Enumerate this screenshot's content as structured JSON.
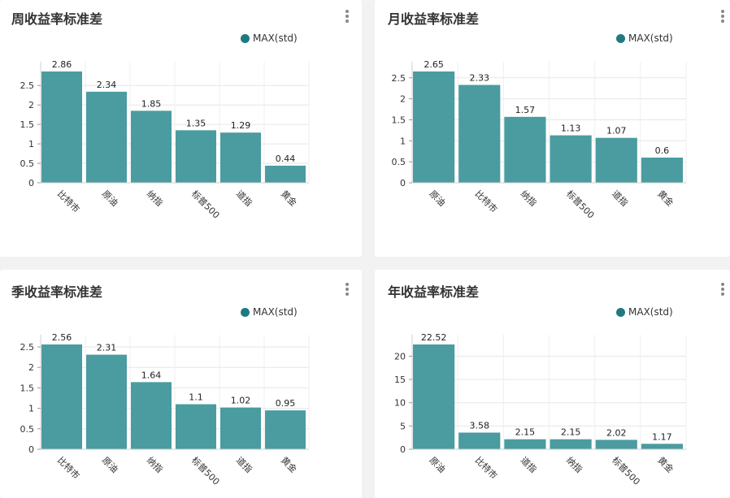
{
  "colors": {
    "bar": "#4a9ca0",
    "legend": "#1f7a80"
  },
  "chart_data": [
    {
      "type": "bar",
      "title": "周收益率标准差",
      "legend": "MAX(std)",
      "categories": [
        "比特市",
        "原油",
        "纳指",
        "标普500",
        "道指",
        "黄金"
      ],
      "values": [
        2.86,
        2.34,
        1.85,
        1.35,
        1.29,
        0.44
      ],
      "value_labels": [
        "2.86",
        "2.34",
        "1.85",
        "1.35",
        "1.29",
        "0.44"
      ],
      "yticks": [
        "0",
        "0.5",
        "1",
        "1.5",
        "2",
        "2.5"
      ],
      "ytick_values": [
        0,
        0.5,
        1,
        1.5,
        2,
        2.5
      ],
      "ylim": [
        0,
        2.86
      ]
    },
    {
      "type": "bar",
      "title": "月收益率标准差",
      "legend": "MAX(std)",
      "categories": [
        "原油",
        "比特市",
        "纳指",
        "标普500",
        "道指",
        "黄金"
      ],
      "values": [
        2.65,
        2.33,
        1.57,
        1.13,
        1.07,
        0.6
      ],
      "value_labels": [
        "2.65",
        "2.33",
        "1.57",
        "1.13",
        "1.07",
        "0.6"
      ],
      "yticks": [
        "0",
        "0.5",
        "1",
        "1.5",
        "2",
        "2.5"
      ],
      "ytick_values": [
        0,
        0.5,
        1,
        1.5,
        2,
        2.5
      ],
      "ylim": [
        0,
        2.65
      ]
    },
    {
      "type": "bar",
      "title": "季收益率标准差",
      "legend": "MAX(std)",
      "categories": [
        "比特市",
        "原油",
        "纳指",
        "标普500",
        "道指",
        "黄金"
      ],
      "values": [
        2.56,
        2.31,
        1.64,
        1.1,
        1.02,
        0.95
      ],
      "value_labels": [
        "2.56",
        "2.31",
        "1.64",
        "1.1",
        "1.02",
        "0.95"
      ],
      "yticks": [
        "0",
        "0.5",
        "1",
        "1.5",
        "2",
        "2.5"
      ],
      "ytick_values": [
        0,
        0.5,
        1,
        1.5,
        2,
        2.5
      ],
      "ylim": [
        0,
        2.56
      ]
    },
    {
      "type": "bar",
      "title": "年收益率标准差",
      "legend": "MAX(std)",
      "categories": [
        "原油",
        "比特市",
        "道指",
        "纳指",
        "标普500",
        "黄金"
      ],
      "values": [
        22.52,
        3.58,
        2.15,
        2.15,
        2.02,
        1.17
      ],
      "value_labels": [
        "22.52",
        "3.58",
        "2.15",
        "2.15",
        "2.02",
        "1.17"
      ],
      "yticks": [
        "0",
        "5",
        "10",
        "15",
        "20"
      ],
      "ytick_values": [
        0,
        5,
        10,
        15,
        20
      ],
      "ylim": [
        0,
        22.52
      ]
    }
  ]
}
